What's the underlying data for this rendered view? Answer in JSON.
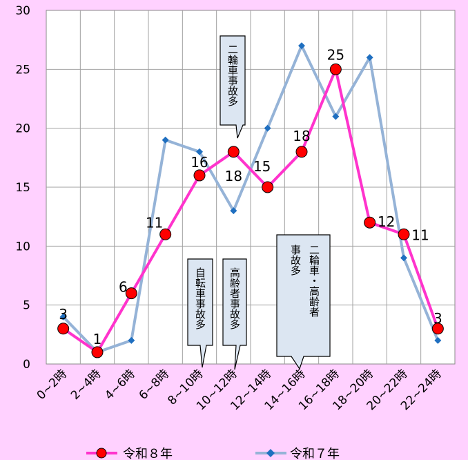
{
  "chart_data": {
    "type": "line",
    "categories": [
      "0~2時",
      "2~4時",
      "4~6時",
      "6~8時",
      "8~10時",
      "10~12時",
      "12~14時",
      "14~16時",
      "16~18時",
      "18~20時",
      "20~22時",
      "22~24時"
    ],
    "ylim": [
      0,
      30
    ],
    "yticks": [
      0,
      5,
      10,
      15,
      20,
      25,
      30
    ],
    "grid": true,
    "legend_position": "bottom",
    "series": [
      {
        "name": "令和８年",
        "values": [
          3,
          1,
          6,
          11,
          16,
          18,
          15,
          18,
          25,
          12,
          11,
          3
        ],
        "color": "#ff33cc",
        "marker": "circle",
        "marker_color": "#ff0000"
      },
      {
        "name": "令和７年",
        "values": [
          4,
          1,
          2,
          19,
          18,
          13,
          20,
          27,
          21,
          26,
          9,
          2
        ],
        "color": "#95b3d7",
        "marker": "diamond",
        "marker_color": "#1f6fc0"
      }
    ],
    "annotations": [
      {
        "text": "二輪車事故多"
      },
      {
        "text": "自転車事故多"
      },
      {
        "text": "高齢者事故多"
      },
      {
        "text_col1": "二輪車・高齢者",
        "text_col2": "事故多"
      }
    ]
  }
}
